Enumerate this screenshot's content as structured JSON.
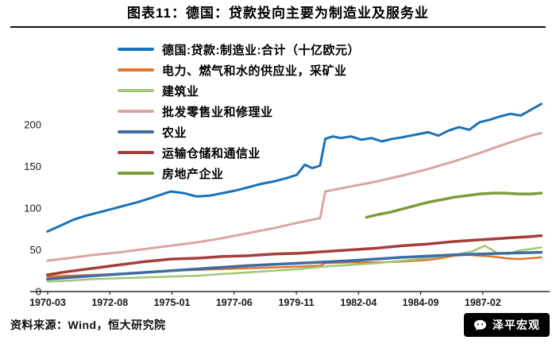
{
  "page": {
    "title": "图表11：德国：贷款投向主要为制造业及服务业",
    "source_note": "资料来源：Wind，恒大研究院",
    "watermark": "泽平宏观"
  },
  "chart_data": {
    "type": "line",
    "title": "图表11：德国：贷款投向主要为制造业及服务业",
    "unit": "十亿欧元",
    "grid": false,
    "legend_position": "top-center-inside",
    "ylim": [
      0,
      240
    ],
    "yticks": [
      0,
      50,
      100,
      150,
      200
    ],
    "xlim": [
      1970.208,
      1989.6
    ],
    "xticks": [
      {
        "label": "1970-03",
        "year": 1970.208
      },
      {
        "label": "1972-08",
        "year": 1972.625
      },
      {
        "label": "1975-01",
        "year": 1975.042
      },
      {
        "label": "1977-06",
        "year": 1977.458
      },
      {
        "label": "1979-11",
        "year": 1979.875
      },
      {
        "label": "1982-04",
        "year": 1982.292
      },
      {
        "label": "1984-09",
        "year": 1984.708
      },
      {
        "label": "1987-02",
        "year": 1987.125
      }
    ],
    "series": [
      {
        "id": "manufacturing",
        "name": "德国:贷款:制造业:合计（十亿欧元）",
        "color": "#1a72b8",
        "width": 3,
        "x": [
          1970.2,
          1970.7,
          1971.2,
          1971.7,
          1972.2,
          1972.7,
          1973.2,
          1973.7,
          1974.2,
          1974.7,
          1975.0,
          1975.5,
          1976.0,
          1976.5,
          1977.0,
          1977.5,
          1978.0,
          1978.5,
          1979.0,
          1979.5,
          1979.9,
          1980.2,
          1980.5,
          1980.8,
          1981.0,
          1981.3,
          1981.6,
          1982.0,
          1982.4,
          1982.8,
          1983.2,
          1983.6,
          1984.0,
          1984.5,
          1985.0,
          1985.4,
          1985.8,
          1986.2,
          1986.6,
          1987.0,
          1987.4,
          1987.8,
          1988.2,
          1988.6,
          1989.0,
          1989.4
        ],
        "y": [
          72,
          79,
          86,
          91,
          95,
          99,
          103,
          107,
          112,
          117,
          120,
          118,
          114,
          115,
          118,
          121,
          125,
          129,
          132,
          136,
          140,
          152,
          148,
          151,
          183,
          186,
          184,
          186,
          182,
          184,
          180,
          183,
          185,
          188,
          191,
          187,
          193,
          197,
          194,
          203,
          206,
          210,
          213,
          211,
          218,
          225
        ]
      },
      {
        "id": "utilities-mining",
        "name": "电力、燃气和水的供应业，采矿业",
        "color": "#e0762a",
        "width": 2.5,
        "x": [
          1970.2,
          1971,
          1972,
          1973,
          1974,
          1975,
          1976,
          1977,
          1978,
          1979,
          1980,
          1980.8,
          1981,
          1982,
          1983,
          1984,
          1985,
          1985.5,
          1986,
          1986.5,
          1987,
          1987.5,
          1988,
          1988.5,
          1989,
          1989.4
        ],
        "y": [
          18,
          19,
          20,
          21,
          23,
          25,
          26,
          27,
          28,
          29,
          30,
          31,
          34,
          35,
          35,
          36,
          38,
          40,
          43,
          44,
          43,
          42,
          40,
          39,
          40,
          41
        ]
      },
      {
        "id": "construction",
        "name": "建筑业",
        "color": "#9fc874",
        "width": 2.5,
        "x": [
          1970.2,
          1971,
          1972,
          1973,
          1974,
          1975,
          1976,
          1977,
          1978,
          1979,
          1980,
          1981,
          1982,
          1983,
          1984,
          1985,
          1986,
          1986.7,
          1987.2,
          1987.7,
          1988.1,
          1988.5,
          1989,
          1989.4
        ],
        "y": [
          12,
          13,
          15,
          16,
          17,
          18,
          19,
          21,
          23,
          25,
          27,
          30,
          32,
          34,
          37,
          40,
          44,
          48,
          55,
          46,
          45,
          49,
          51,
          53
        ]
      },
      {
        "id": "wholesale-retail-repair",
        "name": "批发零售业和修理业",
        "color": "#dda4a4",
        "width": 3,
        "x": [
          1970.2,
          1971,
          1972,
          1973,
          1974,
          1975,
          1976,
          1977,
          1978,
          1979,
          1980,
          1980.8,
          1981.0,
          1981.5,
          1982,
          1983,
          1984,
          1985,
          1986,
          1987,
          1988,
          1989,
          1989.4
        ],
        "y": [
          37,
          40,
          44,
          47,
          51,
          55,
          59,
          64,
          70,
          76,
          83,
          88,
          120,
          123,
          126,
          132,
          139,
          147,
          156,
          166,
          177,
          187,
          190
        ]
      },
      {
        "id": "agriculture",
        "name": "农业",
        "color": "#3f6ba3",
        "width": 3.5,
        "x": [
          1970.2,
          1972,
          1974,
          1976,
          1978,
          1980,
          1982,
          1984,
          1986,
          1988,
          1989.4
        ],
        "y": [
          15,
          19,
          23,
          27,
          31,
          34,
          37,
          41,
          44,
          46,
          47
        ]
      },
      {
        "id": "transport-storage-communication",
        "name": "运输仓储和通信业",
        "color": "#a23f3b",
        "width": 3.5,
        "x": [
          1970.2,
          1971,
          1972,
          1973,
          1974,
          1975,
          1976,
          1977,
          1978,
          1979,
          1980,
          1981,
          1982,
          1983,
          1984,
          1985,
          1986,
          1987,
          1988,
          1989,
          1989.4
        ],
        "y": [
          20,
          24,
          28,
          32,
          36,
          39,
          40,
          42,
          43,
          45,
          46,
          48,
          50,
          52,
          55,
          57,
          60,
          62,
          64,
          66,
          67
        ]
      },
      {
        "id": "real-estate",
        "name": "房地产企业",
        "color": "#7e9b3a",
        "width": 3.5,
        "x": [
          1982.6,
          1983,
          1983.5,
          1984,
          1984.5,
          1985,
          1985.5,
          1986,
          1986.5,
          1987,
          1987.5,
          1988,
          1988.5,
          1989,
          1989.4
        ],
        "y": [
          89,
          92,
          95,
          99,
          103,
          107,
          110,
          113,
          115,
          117,
          118,
          118,
          117,
          117,
          118
        ]
      }
    ]
  }
}
